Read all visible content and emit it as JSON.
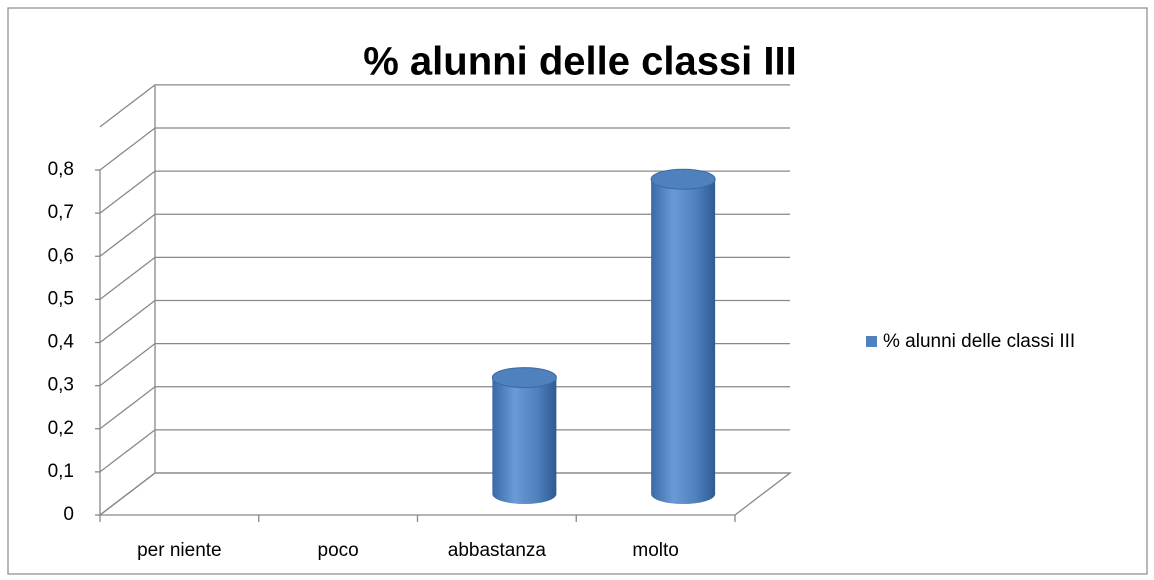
{
  "chart_data": {
    "type": "bar3d",
    "title": "%   alunni delle classi  III",
    "categories": [
      "per niente",
      "poco",
      "abbastanza",
      "molto"
    ],
    "series": [
      {
        "name": "%   alunni delle classi  III",
        "color": "#4f81bd",
        "values": [
          0,
          0,
          0.27,
          0.73
        ]
      }
    ],
    "ylim": [
      0,
      0.8
    ],
    "yticks": [
      0,
      {
        "value": 0.1,
        "label": "0,1"
      },
      {
        "value": 0.2,
        "label": "0,2"
      },
      {
        "value": 0.3,
        "label": "0,3"
      },
      {
        "value": 0.4,
        "label": "0,4"
      },
      {
        "value": 0.5,
        "label": "0,5"
      },
      {
        "value": 0.6,
        "label": "0,6"
      },
      {
        "value": 0.7,
        "label": "0,7"
      },
      {
        "value": 0.8,
        "label": "0,8"
      }
    ],
    "grid": true,
    "legend": "right"
  }
}
